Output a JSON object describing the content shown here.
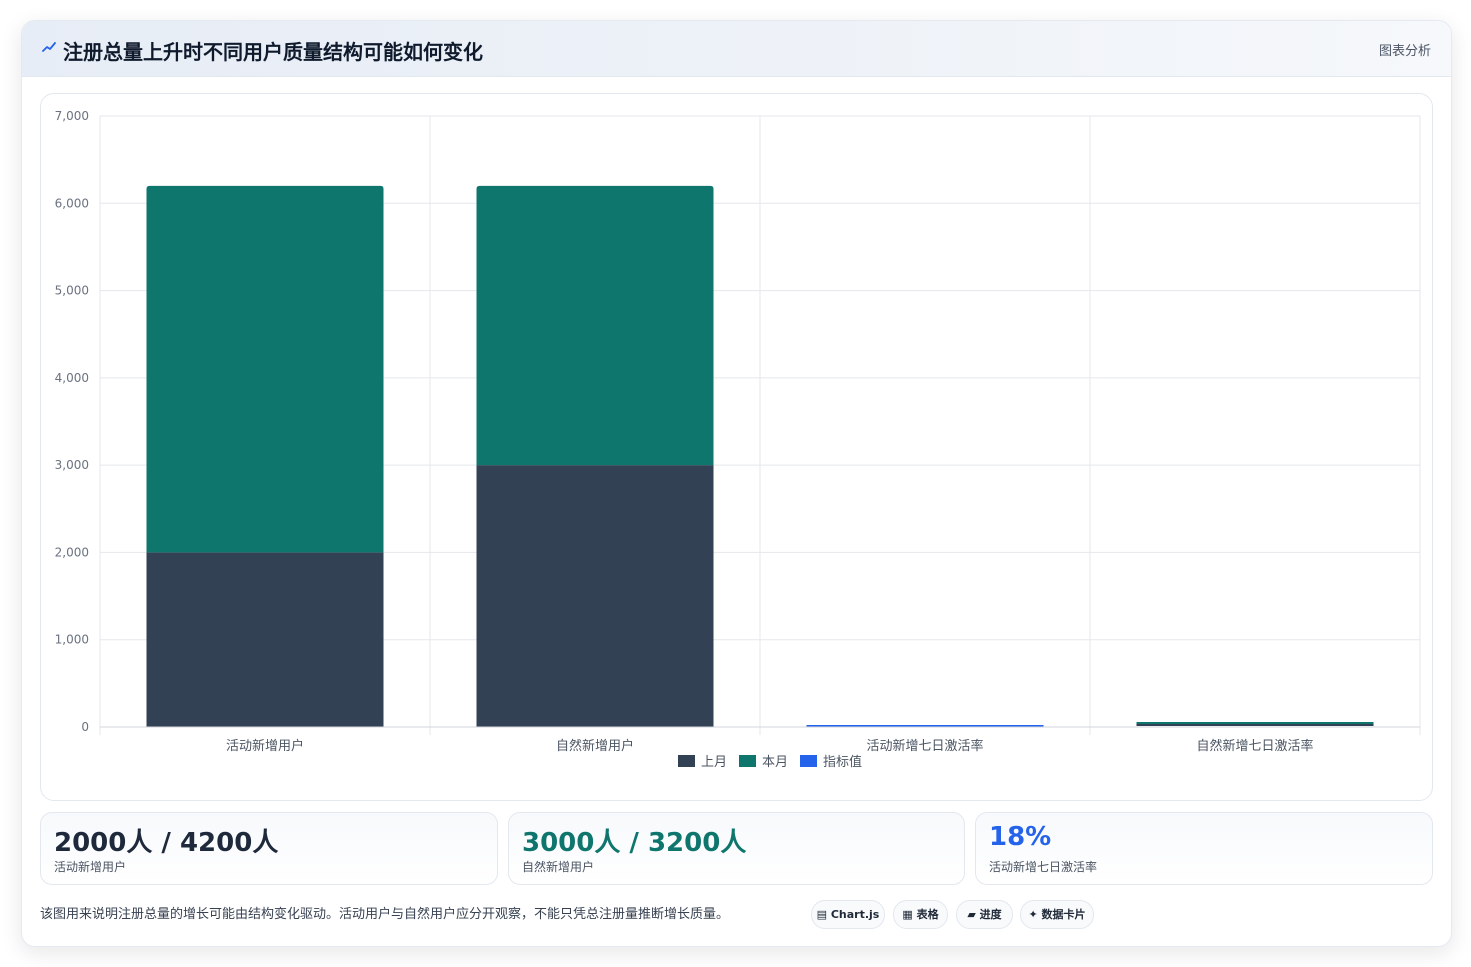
{
  "header": {
    "title": "注册总量上升时不同用户质量结构可能如何变化",
    "tag": "图表分析",
    "icon": "trend-icon",
    "icon_color": "#2563eb"
  },
  "chart_data": {
    "type": "bar",
    "stacked": true,
    "categories": [
      "活动新增用户",
      "自然新增用户",
      "活动新增七日激活率",
      "自然新增七日激活率"
    ],
    "series": [
      {
        "name": "上月",
        "color": "#334155",
        "values": [
          2000,
          3000,
          0,
          0
        ]
      },
      {
        "name": "本月",
        "color": "#0f766e",
        "values": [
          4200,
          3200,
          0,
          0
        ]
      },
      {
        "name": "指标值",
        "color": "#2563eb",
        "values": [
          0,
          0,
          18,
          0
        ]
      }
    ],
    "ylim": [
      0,
      7000
    ],
    "yticks": [
      0,
      1000,
      2000,
      3000,
      4000,
      5000,
      6000,
      7000
    ],
    "ytick_labels": [
      "0",
      "1,000",
      "2,000",
      "3,000",
      "4,000",
      "5,000",
      "6,000",
      "7,000"
    ],
    "xlabel": "",
    "ylabel": "",
    "grid": true,
    "legend": "bottom"
  },
  "kpis": [
    {
      "value": "2000人 / 4200人",
      "label": "活动新增用户",
      "color": "#1e293b"
    },
    {
      "value": "3000人 / 3200人",
      "label": "自然新增用户",
      "color": "#0f766e"
    },
    {
      "value": "18%",
      "label": "活动新增七日激活率",
      "color": "#2563eb"
    }
  ],
  "footer": {
    "note": "该图用来说明注册总量的增长可能由结构变化驱动。活动用户与自然用户应分开观察，不能只凭总注册量推断增长质量。",
    "chips": [
      {
        "label": "▤ Chart.js",
        "icon": "chart-icon"
      },
      {
        "label": "▦ 表格",
        "icon": "table-icon"
      },
      {
        "label": "▰ 进度",
        "icon": "progress-icon"
      },
      {
        "label": "✦ 数据卡片",
        "icon": "sparkle-icon"
      }
    ]
  }
}
